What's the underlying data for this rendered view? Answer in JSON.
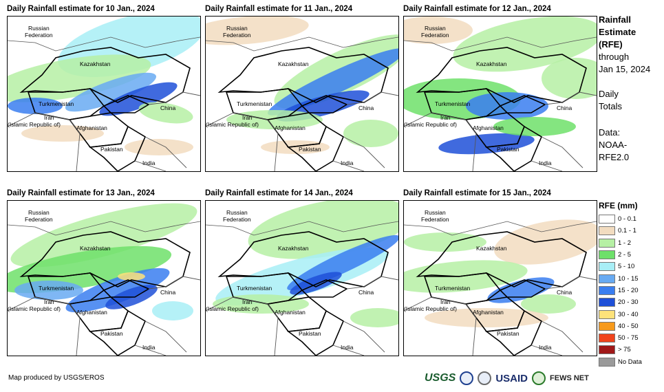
{
  "panels": [
    {
      "title": "Daily Rainfall estimate for 10 Jan., 2024",
      "variant": 0
    },
    {
      "title": "Daily Rainfall estimate for 11 Jan., 2024",
      "variant": 1
    },
    {
      "title": "Daily Rainfall estimate for 12 Jan., 2024",
      "variant": 2
    },
    {
      "title": "Daily Rainfall estimate for 13 Jan., 2024",
      "variant": 3
    },
    {
      "title": "Daily Rainfall estimate for 14 Jan., 2024",
      "variant": 4
    },
    {
      "title": "Daily Rainfall estimate for 15 Jan., 2024",
      "variant": 5
    }
  ],
  "map_labels": {
    "russia_1": "Russian",
    "russia_2": "Federation",
    "kazakhstan": "Kazakhstan",
    "turkmenistan": "Turkmenistan",
    "iran_1": "Iran",
    "iran_2": "(Islamic Republic of)",
    "afghanistan": "Afghanistan",
    "pakistan": "Pakistan",
    "china": "China",
    "india": "India"
  },
  "side": {
    "line1": "Rainfall",
    "line2": "Estimate",
    "line3": "(RFE)",
    "line4": "through",
    "line5": "Jan 15, 2024",
    "line6": "Daily",
    "line7": "Totals",
    "line8": "Data:",
    "line9": "NOAA-",
    "line10": "RFE2.0"
  },
  "legend": {
    "title": "RFE (mm)",
    "items": [
      {
        "label": "0 - 0.1",
        "color": "#ffffff"
      },
      {
        "label": "0.1 - 1",
        "color": "#f2dcc0"
      },
      {
        "label": "1 - 2",
        "color": "#b6f0a4"
      },
      {
        "label": "2 - 5",
        "color": "#6ee06a"
      },
      {
        "label": "5 - 10",
        "color": "#a8eef6"
      },
      {
        "label": "10 - 15",
        "color": "#68aaf2"
      },
      {
        "label": "15 - 20",
        "color": "#3a7ef0"
      },
      {
        "label": "20 - 30",
        "color": "#1e50d8"
      },
      {
        "label": "30 - 40",
        "color": "#fde27a"
      },
      {
        "label": "40 - 50",
        "color": "#f79a1c"
      },
      {
        "label": "50 - 75",
        "color": "#f0441c"
      },
      {
        "label": "> 75",
        "color": "#a01818"
      },
      {
        "label": "No Data",
        "color": "#9a9a9a"
      }
    ]
  },
  "footer": {
    "credit": "Map produced by USGS/EROS"
  },
  "logos": {
    "usgs": "USGS",
    "usaid": "USAID",
    "fews": "FEWS NET"
  }
}
